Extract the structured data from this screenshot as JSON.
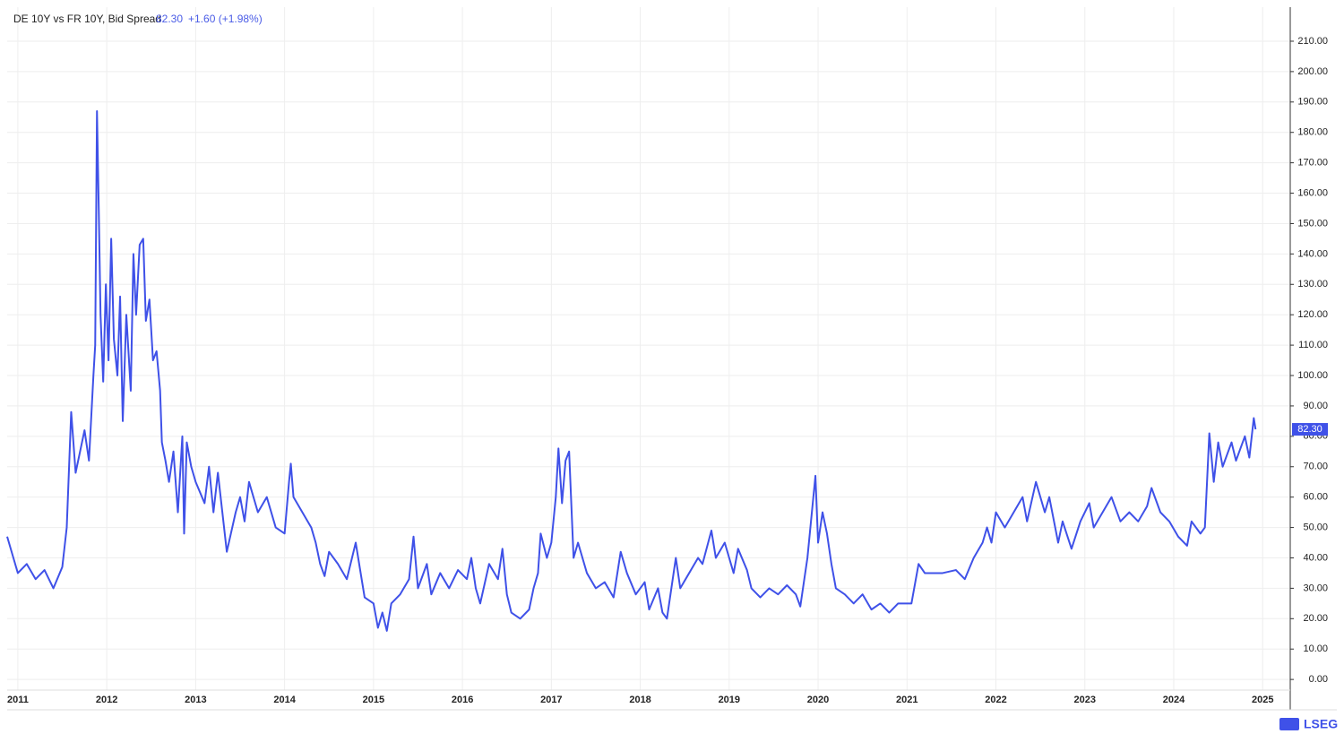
{
  "chart_data": {
    "type": "line",
    "title": "DE 10Y vs FR 10Y, Bid Spread",
    "last_value_label": "82.30",
    "change": "+1.60 (+1.98%)",
    "color": "#3f51e8",
    "grid": true,
    "xlim": [
      2010.88,
      2025.31
    ],
    "ylim": [
      -3.5,
      221.2
    ],
    "xticks": [
      2011,
      2012,
      2013,
      2014,
      2015,
      2016,
      2017,
      2018,
      2019,
      2020,
      2021,
      2022,
      2023,
      2024,
      2025
    ],
    "yticks": [
      {
        "value": 0,
        "label": "0.00"
      },
      {
        "value": 10,
        "label": "10.00"
      },
      {
        "value": 20,
        "label": "20.00"
      },
      {
        "value": 30,
        "label": "30.00"
      },
      {
        "value": 40,
        "label": "40.00"
      },
      {
        "value": 50,
        "label": "50.00"
      },
      {
        "value": 60,
        "label": "60.00"
      },
      {
        "value": 70,
        "label": "70.00"
      },
      {
        "value": 80,
        "label": "80.00"
      },
      {
        "value": 90,
        "label": "90.00"
      },
      {
        "value": 100,
        "label": "100.00"
      },
      {
        "value": 110,
        "label": "110.00"
      },
      {
        "value": 120,
        "label": "120.00"
      },
      {
        "value": 130,
        "label": "130.00"
      },
      {
        "value": 140,
        "label": "140.00"
      },
      {
        "value": 150,
        "label": "150.00"
      },
      {
        "value": 160,
        "label": "160.00"
      },
      {
        "value": 170,
        "label": "170.00"
      },
      {
        "value": 180,
        "label": "180.00"
      },
      {
        "value": 190,
        "label": "190.00"
      },
      {
        "value": 200,
        "label": "200.00"
      },
      {
        "value": 210,
        "label": "210.00"
      }
    ],
    "x": [
      2010.88,
      2011.0,
      2011.1,
      2011.2,
      2011.3,
      2011.4,
      2011.5,
      2011.55,
      2011.6,
      2011.65,
      2011.75,
      2011.8,
      2011.85,
      2011.87,
      2011.89,
      2011.91,
      2011.93,
      2011.96,
      2011.99,
      2012.02,
      2012.05,
      2012.08,
      2012.12,
      2012.15,
      2012.18,
      2012.22,
      2012.27,
      2012.3,
      2012.33,
      2012.37,
      2012.41,
      2012.44,
      2012.48,
      2012.52,
      2012.56,
      2012.6,
      2012.62,
      2012.66,
      2012.7,
      2012.75,
      2012.8,
      2012.85,
      2012.87,
      2012.9,
      2012.95,
      2013.0,
      2013.1,
      2013.15,
      2013.2,
      2013.25,
      2013.3,
      2013.35,
      2013.45,
      2013.5,
      2013.55,
      2013.6,
      2013.7,
      2013.8,
      2013.9,
      2014.0,
      2014.05,
      2014.07,
      2014.1,
      2014.2,
      2014.3,
      2014.35,
      2014.4,
      2014.45,
      2014.5,
      2014.6,
      2014.7,
      2014.8,
      2014.85,
      2014.9,
      2015.0,
      2015.05,
      2015.1,
      2015.15,
      2015.2,
      2015.3,
      2015.4,
      2015.45,
      2015.5,
      2015.6,
      2015.65,
      2015.75,
      2015.85,
      2015.95,
      2016.05,
      2016.1,
      2016.15,
      2016.2,
      2016.3,
      2016.4,
      2016.45,
      2016.5,
      2016.55,
      2016.65,
      2016.75,
      2016.8,
      2016.85,
      2016.88,
      2016.95,
      2017.0,
      2017.05,
      2017.08,
      2017.12,
      2017.16,
      2017.2,
      2017.25,
      2017.3,
      2017.4,
      2017.5,
      2017.6,
      2017.7,
      2017.78,
      2017.85,
      2017.95,
      2018.05,
      2018.1,
      2018.2,
      2018.25,
      2018.3,
      2018.4,
      2018.45,
      2018.55,
      2018.65,
      2018.7,
      2018.8,
      2018.85,
      2018.95,
      2019.05,
      2019.1,
      2019.2,
      2019.25,
      2019.35,
      2019.45,
      2019.55,
      2019.65,
      2019.75,
      2019.8,
      2019.88,
      2019.97,
      2020.0,
      2020.05,
      2020.1,
      2020.15,
      2020.2,
      2020.3,
      2020.4,
      2020.5,
      2020.6,
      2020.7,
      2020.8,
      2020.9,
      2021.05,
      2021.13,
      2021.2,
      2021.4,
      2021.55,
      2021.65,
      2021.75,
      2021.85,
      2021.9,
      2021.95,
      2022.0,
      2022.1,
      2022.2,
      2022.3,
      2022.35,
      2022.45,
      2022.55,
      2022.6,
      2022.7,
      2022.75,
      2022.85,
      2022.95,
      2023.05,
      2023.1,
      2023.2,
      2023.3,
      2023.4,
      2023.5,
      2023.6,
      2023.7,
      2023.75,
      2023.85,
      2023.95,
      2024.05,
      2024.15,
      2024.2,
      2024.3,
      2024.35,
      2024.4,
      2024.45,
      2024.5,
      2024.55,
      2024.65,
      2024.7,
      2024.8,
      2024.85,
      2024.9,
      2024.92
    ],
    "values": [
      47,
      35,
      38,
      33,
      36,
      30,
      37,
      50,
      88,
      68,
      82,
      72,
      100,
      110,
      187,
      155,
      120,
      98,
      130,
      105,
      145,
      112,
      100,
      126,
      85,
      120,
      95,
      140,
      120,
      143,
      145,
      118,
      125,
      105,
      108,
      95,
      78,
      72,
      65,
      75,
      55,
      80,
      48,
      78,
      70,
      65,
      58,
      70,
      55,
      68,
      55,
      42,
      55,
      60,
      52,
      65,
      55,
      60,
      50,
      48,
      65,
      71,
      60,
      55,
      50,
      45,
      38,
      34,
      42,
      38,
      33,
      45,
      36,
      27,
      25,
      17,
      22,
      16,
      25,
      28,
      33,
      47,
      30,
      38,
      28,
      35,
      30,
      36,
      33,
      40,
      30,
      25,
      38,
      33,
      43,
      28,
      22,
      20,
      23,
      30,
      35,
      48,
      40,
      45,
      60,
      76,
      58,
      72,
      75,
      40,
      45,
      35,
      30,
      32,
      27,
      42,
      35,
      28,
      32,
      23,
      30,
      22,
      20,
      40,
      30,
      35,
      40,
      38,
      49,
      40,
      45,
      35,
      43,
      36,
      30,
      27,
      30,
      28,
      31,
      28,
      24,
      40,
      67,
      45,
      55,
      48,
      38,
      30,
      28,
      25,
      28,
      23,
      25,
      22,
      25,
      25,
      38,
      35,
      35,
      36,
      33,
      40,
      45,
      50,
      45,
      55,
      50,
      55,
      60,
      52,
      65,
      55,
      60,
      45,
      52,
      43,
      52,
      58,
      50,
      55,
      60,
      52,
      55,
      52,
      57,
      63,
      55,
      52,
      47,
      44,
      52,
      48,
      50,
      81,
      65,
      78,
      70,
      78,
      72,
      80,
      73,
      86,
      82.3
    ]
  },
  "brand": "LSEG"
}
